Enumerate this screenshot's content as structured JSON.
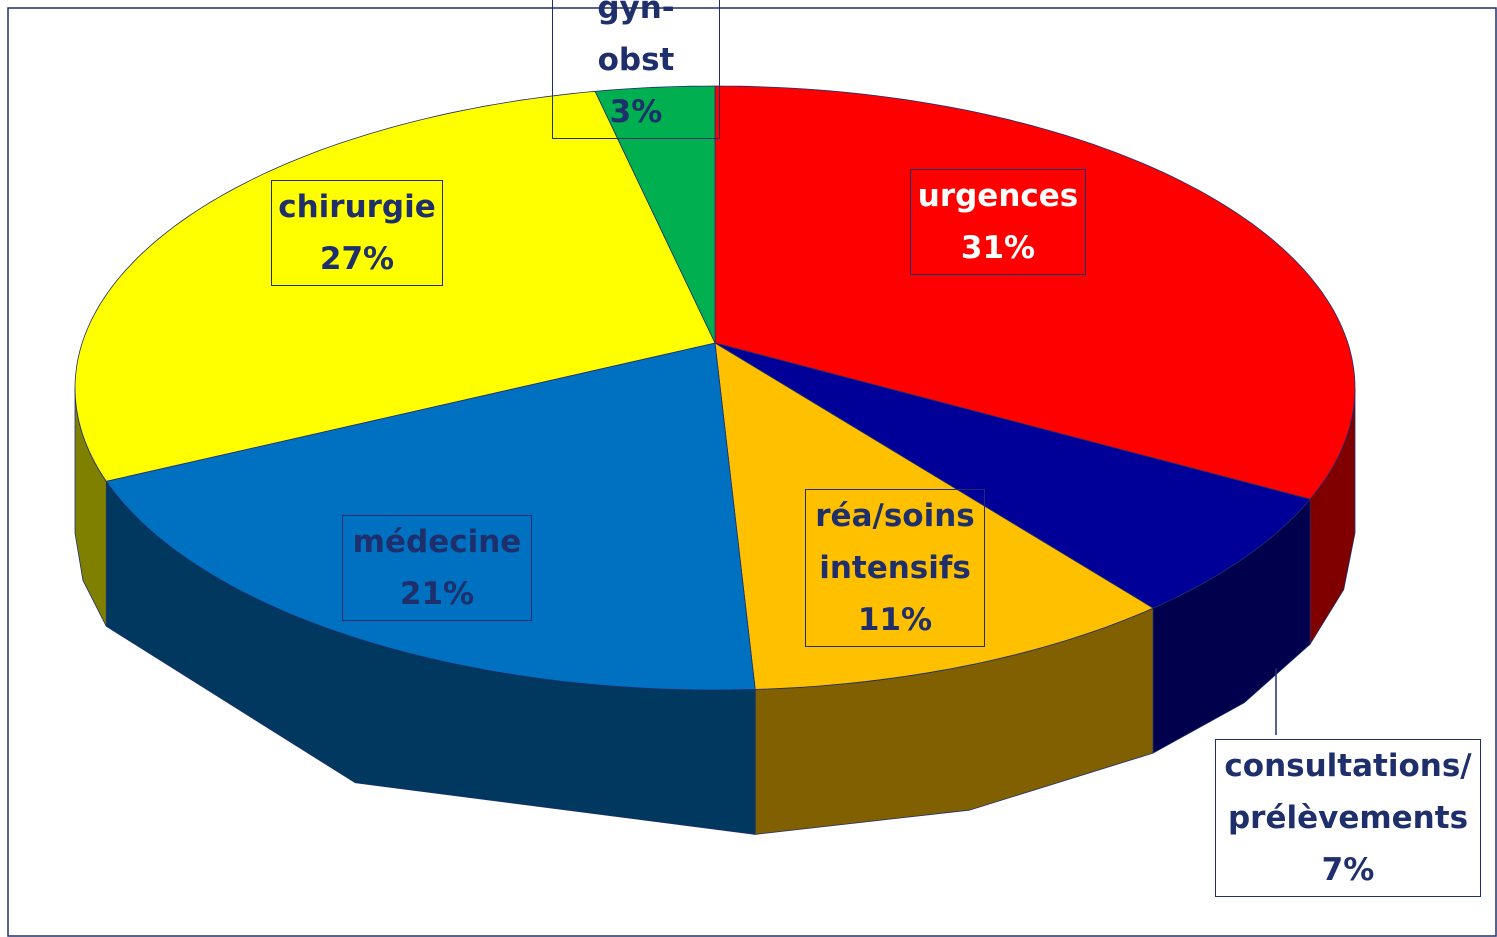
{
  "chart_data": {
    "type": "pie3d",
    "categories": [
      "urgences",
      "consultations/ prélèvements",
      "réa/soins intensifs",
      "médecine",
      "chirurgie",
      "gyn-obst"
    ],
    "values": [
      31,
      7,
      11,
      21,
      27,
      3
    ],
    "value_labels": [
      "31%",
      "7%",
      "11%",
      "21%",
      "27%",
      "3%"
    ],
    "colors": [
      "#ff0000",
      "#000099",
      "#ffc000",
      "#0070c0",
      "#ffff00",
      "#00b050"
    ]
  }
}
